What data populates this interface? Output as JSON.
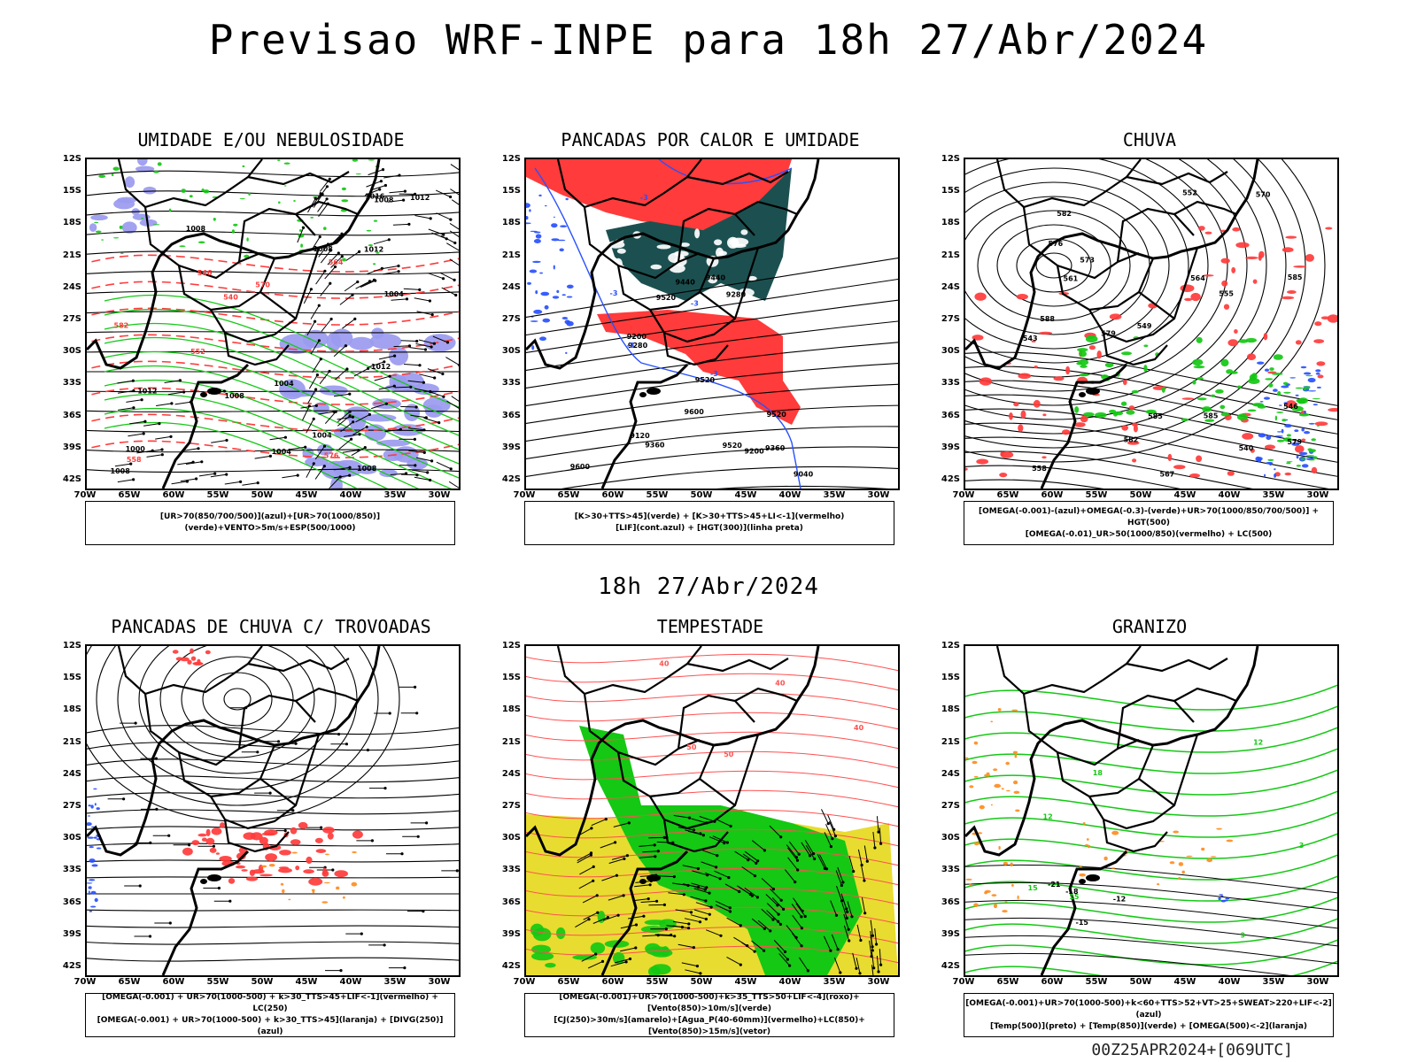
{
  "main_title": "Previsao WRF-INPE  para 18h 27/Abr/2024",
  "middle_title": "18h 27/Abr/2024",
  "footer": "00Z25APR2024+[069UTC]",
  "lat_labels": [
    "12S",
    "15S",
    "18S",
    "21S",
    "24S",
    "27S",
    "30S",
    "33S",
    "36S",
    "39S",
    "42S"
  ],
  "lon_labels": [
    "70W",
    "65W",
    "60W",
    "55W",
    "50W",
    "45W",
    "40W",
    "35W",
    "30W"
  ],
  "panels": [
    {
      "title": "UMIDADE E/OU NEBULOSIDADE",
      "caption": [
        "[UR>70(850/700/500)](azul)+[UR>70(1000/850)](verde)+VENTO>5m/s+ESP(500/1000)"
      ],
      "contour_labels": [
        "1008",
        "1008",
        "1012",
        "1012",
        "1012",
        "1004",
        "1016",
        "1008",
        "1004",
        "1012",
        "1004",
        "1008",
        "1000",
        "1008",
        "1004",
        "1008",
        "576",
        "582",
        "564",
        "552",
        "570",
        "558",
        "546",
        "540"
      ]
    },
    {
      "title": "PANCADAS POR CALOR E UMIDADE",
      "caption": [
        "[K>30+TTS>45](verde) + [K>30+TTS>45+LI<-1](vermelho)",
        "[LIF](cont.azul) + [HGT(300)](linha preta)"
      ],
      "contour_labels": [
        "9600",
        "9520",
        "9520",
        "9600",
        "9520",
        "9440",
        "9360",
        "9280",
        "9200",
        "9120",
        "9040",
        "9280",
        "9360",
        "9440",
        "9520",
        "9200",
        "-3",
        "-3",
        "-3",
        "-3",
        "-3"
      ]
    },
    {
      "title": "CHUVA",
      "caption": [
        "[OMEGA(-0.001)-(azul)+OMEGA(-0.3)-(verde)+UR>70(1000/850/700/500)] + HGT(500)",
        "[OMEGA(-0.01)_UR>50(1000/850)(vermelho) + LC(500)"
      ],
      "contour_labels": [
        "585",
        "588",
        "585",
        "582",
        "579",
        "576",
        "573",
        "570",
        "567",
        "564",
        "561",
        "558",
        "555",
        "552",
        "549",
        "546",
        "543",
        "540",
        "585",
        "582",
        "579"
      ]
    },
    {
      "title": "PANCADAS DE CHUVA C/ TROVOADAS",
      "caption": [
        "[OMEGA(-0.001) + UR>70(1000-500) + k>30_TTS>45+LIF<-1](vermelho) + LC(250)",
        "[OMEGA(-0.001) + UR>70(1000-500) + k>30_TTS>45](laranja) + [DIVG(250)](azul)"
      ],
      "contour_labels": []
    },
    {
      "title": "TEMPESTADE",
      "caption": [
        "[OMEGA(-0.001)+UR>70(1000-500)+k>35_TTS>50+LIF<-4](roxo)+[Vento(850)>10m/s](verde)",
        "[CJ(250)>30m/s](amarelo)+[Agua_P(40-60mm)](vermelho)+LC(850)+[Vento(850)>15m/s](vetor)"
      ],
      "contour_labels": [
        "40",
        "40",
        "40",
        "50",
        "50"
      ]
    },
    {
      "title": "GRANIZO",
      "caption": [
        "[OMEGA(-0.001)+UR>70(1000-500)+k<60+TTS>52+VT>25+SWEAT>220+LIF<-2](azul)",
        "[Temp(500)](preto) + [Temp(850)](verde) + [OMEGA(500)<-2](laranja)"
      ],
      "contour_labels": [
        "-12",
        "-15",
        "-18",
        "-21",
        "12",
        "15",
        "18",
        "9",
        "12",
        "15",
        "3"
      ]
    }
  ],
  "colors": {
    "red": "#ff3b3b",
    "green": "#14c814",
    "blue": "#2850ff",
    "lavender": "#9a9af0",
    "dark_teal": "#1c5050",
    "yellow": "#e8dc30",
    "orange": "#ff8c1e",
    "salmon": "#ff5050"
  }
}
